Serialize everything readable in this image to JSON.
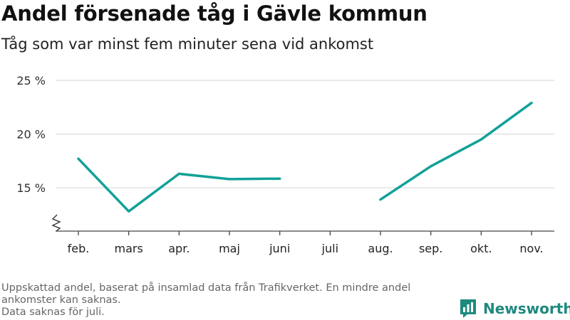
{
  "header": {
    "title": "Andel försenade tåg i Gävle kommun",
    "subtitle": "Tåg som var minst fem minuter sena vid ankomst"
  },
  "footer": {
    "note_line1": "Uppskattad andel, baserat på insamlad data från Trafikverket. En mindre andel ankomster kan saknas.",
    "note_line2": "Data saknas för juli."
  },
  "brand": {
    "name": "Newsworthy",
    "icon": "newsworthy-logo-icon",
    "color": "#1e8a7e"
  },
  "chart_data": {
    "type": "line",
    "categories": [
      "feb.",
      "mars",
      "apr.",
      "maj",
      "juni",
      "juli",
      "aug.",
      "sep.",
      "okt.",
      "nov."
    ],
    "series": [
      {
        "values": [
          17.7,
          12.8,
          16.3,
          15.8,
          15.85,
          null,
          13.9,
          17.0,
          19.5,
          22.9
        ],
        "color": "#12a198"
      }
    ],
    "y_ticks": [
      15,
      20,
      25
    ],
    "y_tick_labels": [
      "15 %",
      "20 %",
      "25 %"
    ],
    "ylim": [
      11,
      25
    ],
    "y_axis_break": true,
    "grid": true,
    "xlabel": "",
    "ylabel": ""
  }
}
